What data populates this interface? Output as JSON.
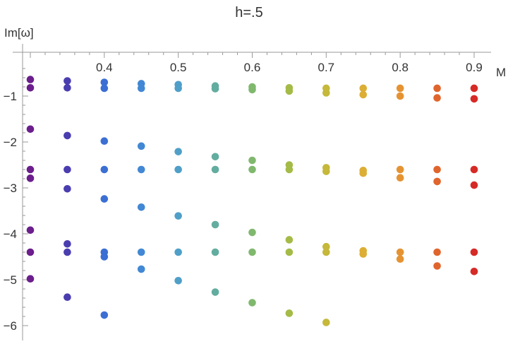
{
  "chart_data": {
    "type": "scatter",
    "title": "h=.5",
    "xlabel": "M",
    "ylabel": "Im[ω]",
    "xlim": [
      0.3,
      0.92
    ],
    "ylim": [
      -6.15,
      -0.32
    ],
    "x_ticks": [
      0.4,
      0.5,
      0.6,
      0.7,
      0.8,
      0.9
    ],
    "x_tick_labels": [
      "0.4",
      "0.5",
      "0.6",
      "0.7",
      "0.8",
      "0.9"
    ],
    "y_ticks": [
      -1,
      -2,
      -3,
      -4,
      -5,
      -6
    ],
    "y_tick_labels": [
      "−1",
      "−2",
      "−3",
      "−4",
      "−5",
      "−6"
    ],
    "x_axis_position": "top",
    "grid": false,
    "series": [
      {
        "x": 0.3,
        "y": [
          -0.64,
          -0.82,
          -1.72,
          -2.6,
          -2.79,
          -3.92,
          -4.4,
          -4.98
        ],
        "color": "#6b1e8c"
      },
      {
        "x": 0.35,
        "y": [
          -0.67,
          -0.82,
          -1.86,
          -2.6,
          -3.02,
          -4.22,
          -4.4,
          -5.38
        ],
        "color": "#4a3db0"
      },
      {
        "x": 0.4,
        "y": [
          -0.7,
          -0.83,
          -1.98,
          -2.6,
          -3.24,
          -4.4,
          -4.5,
          -5.77
        ],
        "color": "#3b6fd4"
      },
      {
        "x": 0.45,
        "y": [
          -0.73,
          -0.83,
          -2.09,
          -2.6,
          -3.42,
          -4.4,
          -4.77
        ],
        "color": "#4288d4"
      },
      {
        "x": 0.5,
        "y": [
          -0.75,
          -0.83,
          -2.21,
          -2.6,
          -3.61,
          -4.4,
          -5.02
        ],
        "color": "#4f9fc8"
      },
      {
        "x": 0.55,
        "y": [
          -0.78,
          -0.84,
          -2.32,
          -2.6,
          -3.8,
          -4.4,
          -5.27
        ],
        "color": "#62ad9f"
      },
      {
        "x": 0.6,
        "y": [
          -0.8,
          -0.86,
          -2.4,
          -2.6,
          -3.97,
          -4.4,
          -5.5
        ],
        "color": "#80b86e"
      },
      {
        "x": 0.65,
        "y": [
          -0.82,
          -0.89,
          -2.5,
          -2.6,
          -4.13,
          -4.4,
          -5.73
        ],
        "color": "#a4bb47"
      },
      {
        "x": 0.7,
        "y": [
          -0.83,
          -0.93,
          -2.56,
          -2.64,
          -4.28,
          -4.4,
          -5.93
        ],
        "color": "#c5b83a"
      },
      {
        "x": 0.75,
        "y": [
          -0.83,
          -0.97,
          -2.62,
          -2.68,
          -4.37,
          -4.44
        ],
        "color": "#ddae35"
      },
      {
        "x": 0.8,
        "y": [
          -0.83,
          -1.0,
          -2.6,
          -2.78,
          -4.4,
          -4.55
        ],
        "color": "#e59332"
      },
      {
        "x": 0.85,
        "y": [
          -0.83,
          -1.04,
          -2.6,
          -2.86,
          -4.4,
          -4.7
        ],
        "color": "#e0652d"
      },
      {
        "x": 0.9,
        "y": [
          -0.83,
          -1.06,
          -2.6,
          -2.94,
          -4.4,
          -4.82
        ],
        "color": "#d62a26"
      }
    ]
  }
}
